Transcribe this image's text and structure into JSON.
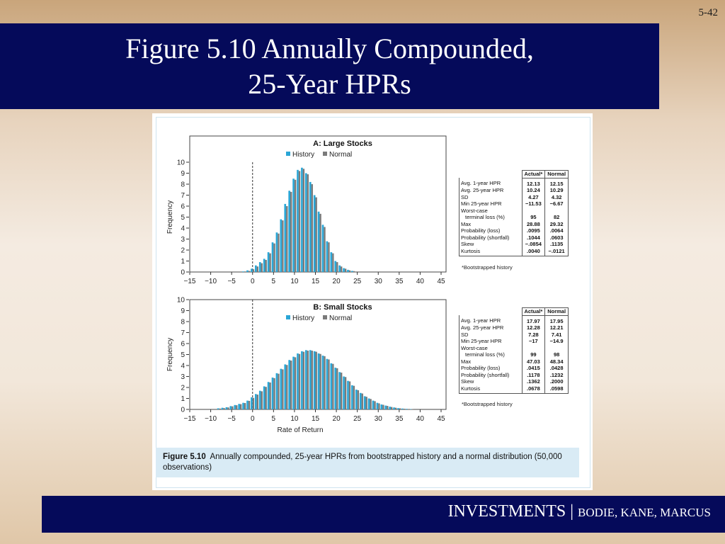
{
  "slide": {
    "number": "5-42",
    "title_line1": "Figure 5.10 Annually Compounded,",
    "title_line2": "25-Year HPRs",
    "footer_main": "INVESTMENTS | ",
    "footer_authors": "BODIE, KANE, MARCUS"
  },
  "caption": {
    "label": "Figure 5.10",
    "text": "Annually compounded, 25-year HPRs from bootstrapped history and a normal distribution (50,000 observations)"
  },
  "colors": {
    "title_bar": "#050a5a",
    "history": "#2aa6d6",
    "normal": "#7a7a7a",
    "caption_bg": "#d9ebf5"
  },
  "chart_data": [
    {
      "type": "bar",
      "title": "A: Large Stocks",
      "ylabel": "Frequency",
      "xlabel": "",
      "xlim": [
        -15,
        45
      ],
      "ylim": [
        0,
        10
      ],
      "xticks": [
        "−15",
        "−10",
        "−5",
        "0",
        "5",
        "10",
        "15",
        "20",
        "25",
        "30",
        "35",
        "40",
        "45"
      ],
      "yticks": [
        "0",
        "1",
        "2",
        "3",
        "4",
        "5",
        "6",
        "7",
        "8",
        "9",
        "10"
      ],
      "legend": {
        "history": "History",
        "normal": "Normal",
        "position": "top-center"
      },
      "grid": false,
      "bin_centers": [
        -2,
        -1,
        0,
        1,
        2,
        3,
        4,
        5,
        6,
        7,
        8,
        9,
        10,
        11,
        12,
        13,
        14,
        15,
        16,
        17,
        18,
        19,
        20,
        21,
        22,
        23,
        24
      ],
      "series": [
        {
          "name": "History",
          "values": [
            0.05,
            0.15,
            0.3,
            0.6,
            0.9,
            1.2,
            1.8,
            2.7,
            3.6,
            4.8,
            6.2,
            7.4,
            8.5,
            9.3,
            9.5,
            9.0,
            8.2,
            7.0,
            5.5,
            4.3,
            2.8,
            1.8,
            1.0,
            0.6,
            0.35,
            0.2,
            0.1
          ]
        },
        {
          "name": "Normal",
          "values": [
            0.05,
            0.1,
            0.25,
            0.5,
            0.8,
            1.1,
            1.7,
            2.6,
            3.5,
            4.7,
            6.0,
            7.3,
            8.4,
            9.2,
            9.4,
            8.9,
            8.0,
            6.8,
            5.3,
            4.1,
            2.7,
            1.7,
            0.9,
            0.5,
            0.3,
            0.15,
            0.08
          ]
        }
      ],
      "table": {
        "headers": [
          "",
          "Actual*",
          "Normal"
        ],
        "rows": [
          [
            "Avg. 1-year HPR",
            "12.13",
            "12.15"
          ],
          [
            "Avg. 25-year HPR",
            "10.24",
            "10.29"
          ],
          [
            "SD",
            "4.27",
            "4.32"
          ],
          [
            "Min 25-year HPR",
            "−11.53",
            "−6.67"
          ],
          [
            "Worst-case",
            "",
            ""
          ],
          [
            "terminal loss (%)",
            "95",
            "82"
          ],
          [
            "Max",
            "28.88",
            "29.32"
          ],
          [
            "Probability (loss)",
            ".0095",
            ".0064"
          ],
          [
            "Probability (shortfall)",
            ".1044",
            ".0603"
          ],
          [
            "Skew",
            "−.0854",
            ".1135"
          ],
          [
            "Kurtosis",
            ".0040",
            "−.0121"
          ]
        ],
        "footnote": "*Bootstrapped history"
      }
    },
    {
      "type": "bar",
      "title": "B: Small Stocks",
      "ylabel": "Frequency",
      "xlabel": "Rate of Return",
      "xlim": [
        -15,
        45
      ],
      "ylim": [
        0,
        10
      ],
      "xticks": [
        "−15",
        "−10",
        "−5",
        "0",
        "5",
        "10",
        "15",
        "20",
        "25",
        "30",
        "35",
        "40",
        "45"
      ],
      "yticks": [
        "0",
        "1",
        "2",
        "3",
        "4",
        "5",
        "6",
        "7",
        "8",
        "9",
        "10"
      ],
      "legend": {
        "history": "History",
        "normal": "Normal",
        "position": "top-center"
      },
      "grid": false,
      "bin_centers": [
        -8,
        -7,
        -6,
        -5,
        -4,
        -3,
        -2,
        -1,
        0,
        1,
        2,
        3,
        4,
        5,
        6,
        7,
        8,
        9,
        10,
        11,
        12,
        13,
        14,
        15,
        16,
        17,
        18,
        19,
        20,
        21,
        22,
        23,
        24,
        25,
        26,
        27,
        28,
        29,
        30,
        31,
        32,
        33,
        34,
        35,
        36,
        37,
        38
      ],
      "series": [
        {
          "name": "History",
          "values": [
            0.1,
            0.15,
            0.2,
            0.3,
            0.4,
            0.5,
            0.6,
            0.8,
            1.1,
            1.4,
            1.7,
            2.1,
            2.5,
            2.9,
            3.3,
            3.7,
            4.1,
            4.5,
            4.8,
            5.1,
            5.3,
            5.4,
            5.4,
            5.3,
            5.1,
            4.9,
            4.6,
            4.2,
            3.8,
            3.4,
            3.0,
            2.6,
            2.2,
            1.8,
            1.5,
            1.2,
            1.0,
            0.8,
            0.6,
            0.45,
            0.35,
            0.25,
            0.18,
            0.12,
            0.08,
            0.05,
            0.03
          ]
        },
        {
          "name": "Normal",
          "values": [
            0.08,
            0.12,
            0.18,
            0.28,
            0.38,
            0.48,
            0.58,
            0.78,
            1.05,
            1.35,
            1.65,
            2.05,
            2.45,
            2.85,
            3.25,
            3.65,
            4.05,
            4.45,
            4.75,
            5.05,
            5.25,
            5.35,
            5.35,
            5.25,
            5.05,
            4.85,
            4.55,
            4.15,
            3.75,
            3.35,
            2.95,
            2.55,
            2.15,
            1.75,
            1.45,
            1.15,
            0.95,
            0.75,
            0.55,
            0.42,
            0.32,
            0.22,
            0.15,
            0.1,
            0.06,
            0.04,
            0.02
          ]
        }
      ],
      "table": {
        "headers": [
          "",
          "Actual*",
          "Normal"
        ],
        "rows": [
          [
            "Avg. 1-year HPR",
            "17.97",
            "17.95"
          ],
          [
            "Avg. 25-year HPR",
            "12.28",
            "12.21"
          ],
          [
            "SD",
            "7.28",
            "7.41"
          ],
          [
            "Min 25-year HPR",
            "−17",
            "−14.9"
          ],
          [
            "Worst-case",
            "",
            ""
          ],
          [
            "terminal loss (%)",
            "99",
            "98"
          ],
          [
            "Max",
            "47.03",
            "48.34"
          ],
          [
            "Probability (loss)",
            ".0415",
            ".0428"
          ],
          [
            "Probability (shortfall)",
            ".1178",
            ".1232"
          ],
          [
            "Skew",
            ".1362",
            ".2000"
          ],
          [
            "Kurtosis",
            ".0678",
            ".0598"
          ]
        ],
        "footnote": "*Bootstrapped history"
      }
    }
  ]
}
